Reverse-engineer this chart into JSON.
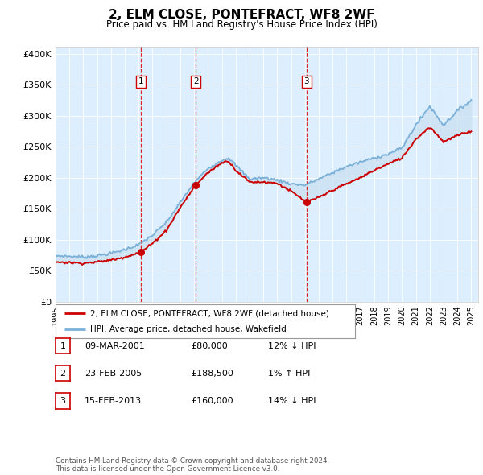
{
  "title": "2, ELM CLOSE, PONTEFRACT, WF8 2WF",
  "subtitle": "Price paid vs. HM Land Registry's House Price Index (HPI)",
  "background_color": "#ffffff",
  "plot_bg_color": "#ddeeff",
  "ylim": [
    0,
    410000
  ],
  "yticks": [
    0,
    50000,
    100000,
    150000,
    200000,
    250000,
    300000,
    350000,
    400000
  ],
  "ytick_labels": [
    "£0",
    "£50K",
    "£100K",
    "£150K",
    "£200K",
    "£250K",
    "£300K",
    "£350K",
    "£400K"
  ],
  "sale_year_nums": [
    2001.17,
    2005.12,
    2013.12
  ],
  "sale_prices": [
    80000,
    188500,
    160000
  ],
  "sale_labels": [
    "1",
    "2",
    "3"
  ],
  "legend_house": "2, ELM CLOSE, PONTEFRACT, WF8 2WF (detached house)",
  "legend_hpi": "HPI: Average price, detached house, Wakefield",
  "table_rows": [
    [
      "1",
      "09-MAR-2001",
      "£80,000",
      "12% ↓ HPI"
    ],
    [
      "2",
      "23-FEB-2005",
      "£188,500",
      "1% ↑ HPI"
    ],
    [
      "3",
      "15-FEB-2013",
      "£160,000",
      "14% ↓ HPI"
    ]
  ],
  "footer": "Contains HM Land Registry data © Crown copyright and database right 2024.\nThis data is licensed under the Open Government Licence v3.0.",
  "house_color": "#cc0000",
  "hpi_color": "#7ab0d8",
  "fill_color": "#c8dff0",
  "vline_color": "#dd0000",
  "sale_marker_color": "#cc0000",
  "hpi_knots": [
    1995,
    1996,
    1997,
    1998,
    1999,
    2000,
    2001,
    2002,
    2003,
    2004,
    2005,
    2006,
    2007,
    2007.5,
    2008,
    2009,
    2010,
    2011,
    2012,
    2013,
    2014,
    2015,
    2016,
    2017,
    2018,
    2019,
    2020,
    2021,
    2022,
    2023,
    2024,
    2025
  ],
  "hpi_vals": [
    74000,
    73000,
    72000,
    74000,
    78000,
    84000,
    92000,
    107000,
    128000,
    160000,
    192000,
    215000,
    228000,
    232000,
    220000,
    198000,
    200000,
    196000,
    190000,
    188000,
    198000,
    208000,
    218000,
    225000,
    232000,
    238000,
    248000,
    285000,
    315000,
    285000,
    308000,
    325000
  ],
  "house_knots": [
    1995,
    1996,
    1997,
    1998,
    1999,
    2000,
    2001.17,
    2002,
    2003,
    2004,
    2005.12,
    2006,
    2007,
    2007.5,
    2008,
    2009,
    2010,
    2011,
    2012,
    2013.12,
    2014,
    2015,
    2016,
    2017,
    2018,
    2019,
    2020,
    2021,
    2022,
    2023,
    2024,
    2025
  ],
  "house_vals": [
    64000,
    63000,
    62000,
    64000,
    67000,
    72000,
    80000,
    94000,
    115000,
    152000,
    188500,
    208000,
    224000,
    227000,
    212000,
    193000,
    193000,
    191000,
    178000,
    160000,
    168000,
    180000,
    190000,
    200000,
    212000,
    222000,
    232000,
    262000,
    282000,
    258000,
    268000,
    275000
  ]
}
